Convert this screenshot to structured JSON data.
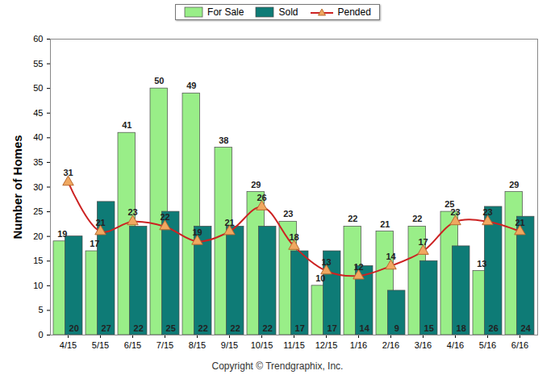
{
  "chart_data": {
    "type": "bar",
    "y_label": "Number of Homes",
    "caption": "Copyright © Trendgraphix, Inc.",
    "categories": [
      "4/15",
      "5/15",
      "6/15",
      "7/15",
      "8/15",
      "9/15",
      "10/15",
      "11/15",
      "12/15",
      "1/16",
      "2/16",
      "3/16",
      "4/16",
      "5/16",
      "6/16"
    ],
    "series": [
      {
        "name": "For Sale",
        "type": "bar",
        "color": "#99ee88",
        "values": [
          19,
          17,
          41,
          50,
          49,
          38,
          29,
          23,
          10,
          22,
          21,
          22,
          25,
          13,
          29
        ]
      },
      {
        "name": "Sold",
        "type": "bar",
        "color": "#0e7b76",
        "values": [
          20,
          27,
          22,
          25,
          22,
          22,
          22,
          17,
          17,
          14,
          9,
          15,
          18,
          26,
          24
        ]
      },
      {
        "name": "Pended",
        "type": "line",
        "color": "#cc2222",
        "marker": "triangle",
        "values": [
          31,
          21,
          23,
          22,
          19,
          21,
          26,
          18,
          13,
          12,
          14,
          17,
          23,
          23,
          21
        ]
      }
    ],
    "ylim": [
      0,
      60
    ],
    "yticks": [
      0,
      5,
      10,
      15,
      20,
      25,
      30,
      35,
      40,
      45,
      50,
      55,
      60
    ],
    "grid": false,
    "legend": "top",
    "data_labels": true
  }
}
